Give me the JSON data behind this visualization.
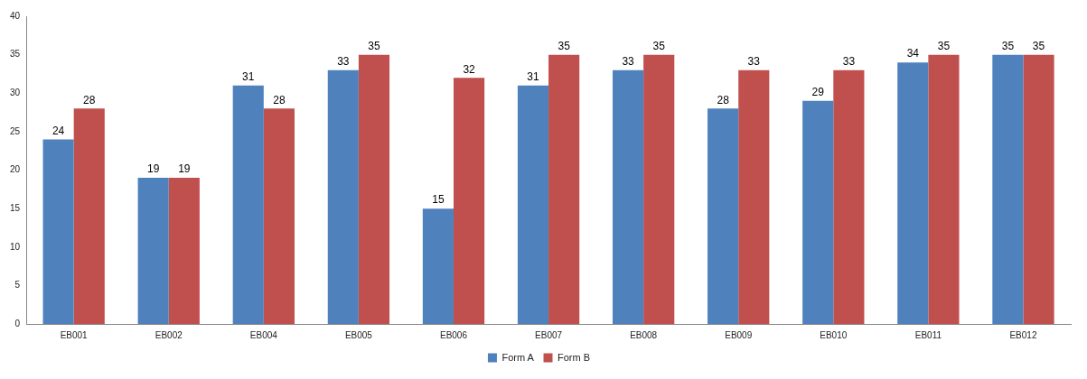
{
  "chart_data": {
    "type": "bar",
    "categories": [
      "EB001",
      "EB002",
      "EB004",
      "EB005",
      "EB006",
      "EB007",
      "EB008",
      "EB009",
      "EB010",
      "EB011",
      "EB012"
    ],
    "series": [
      {
        "name": "Form A",
        "color": "#4f81bd",
        "values": [
          24,
          19,
          31,
          33,
          15,
          31,
          33,
          28,
          29,
          34,
          35
        ]
      },
      {
        "name": "Form B",
        "color": "#c0504d",
        "values": [
          28,
          19,
          28,
          35,
          32,
          35,
          35,
          33,
          33,
          35,
          35
        ]
      }
    ],
    "ylim": [
      0,
      40
    ],
    "yticks": [
      0,
      5,
      10,
      15,
      20,
      25,
      30,
      35,
      40
    ],
    "grid": false,
    "legend": "bottom",
    "data_labels": true
  }
}
